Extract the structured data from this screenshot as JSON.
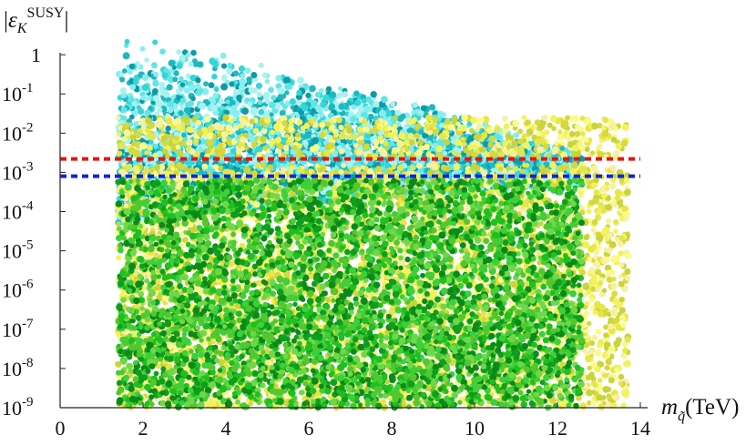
{
  "chart_data": {
    "type": "scatter",
    "title": "",
    "ylabel": "|εK^SUSY|",
    "ylabel_parts": {
      "left_bar": "|",
      "epsilon": "ε",
      "subscript": "K",
      "superscript": "SUSY",
      "right_bar": "|"
    },
    "xlabel": "m_q̃(TeV)",
    "xlabel_parts": {
      "m": "m",
      "subscript": "q̃",
      "unit": "(TeV)"
    },
    "xlim": [
      0,
      14
    ],
    "x_scale": "linear",
    "x_ticks": [
      {
        "value": 0,
        "label": "0"
      },
      {
        "value": 2,
        "label": "2"
      },
      {
        "value": 4,
        "label": "4"
      },
      {
        "value": 6,
        "label": "6"
      },
      {
        "value": 8,
        "label": "8"
      },
      {
        "value": 10,
        "label": "10"
      },
      {
        "value": 12,
        "label": "12"
      },
      {
        "value": 14,
        "label": "14"
      }
    ],
    "y_scale": "log",
    "ylim": [
      1e-09,
      5
    ],
    "y_ticks": [
      {
        "value": 1,
        "base": "1",
        "exp": ""
      },
      {
        "value": 0.1,
        "base": "10",
        "exp": "-1"
      },
      {
        "value": 0.01,
        "base": "10",
        "exp": "-2"
      },
      {
        "value": 0.001,
        "base": "10",
        "exp": "-3"
      },
      {
        "value": 0.0001,
        "base": "10",
        "exp": "-4"
      },
      {
        "value": 1e-05,
        "base": "10",
        "exp": "-5"
      },
      {
        "value": 1e-06,
        "base": "10",
        "exp": "-6"
      },
      {
        "value": 1e-07,
        "base": "10",
        "exp": "-7"
      },
      {
        "value": 1e-08,
        "base": "10",
        "exp": "-8"
      },
      {
        "value": 1e-09,
        "base": "10",
        "exp": "-9"
      }
    ],
    "grid": false,
    "reference_lines": [
      {
        "y": 0.0022,
        "color": "#ee1111",
        "style": "dashed"
      },
      {
        "y": 0.0008,
        "color": "#1122dd",
        "style": "dashed"
      }
    ],
    "series": [
      {
        "color_group": "cyan",
        "colors": [
          "#33d6d9",
          "#5ee6e6",
          "#86eeee",
          "#1fb8c0",
          "#0e9aa6",
          "#a8f2f0"
        ],
        "x_range": [
          1.4,
          12.6
        ],
        "envelope_top_log10": [
          [
            1.4,
            0.5
          ],
          [
            3.0,
            0.3
          ],
          [
            6.0,
            -0.5
          ],
          [
            9.0,
            -1.3
          ],
          [
            12.6,
            -2.5
          ]
        ],
        "envelope_bottom_log10": [
          [
            1.4,
            -4.3
          ],
          [
            4.0,
            -4.0
          ],
          [
            8.0,
            -3.6
          ],
          [
            12.6,
            -3.3
          ]
        ],
        "approx_points": 5000
      },
      {
        "color_group": "yellow",
        "colors": [
          "#f2f25a",
          "#e6e64a",
          "#fafa8a",
          "#d8d83c",
          "#c9d43a",
          "#f7f0a0"
        ],
        "x_range": [
          1.4,
          13.7
        ],
        "log10_range": [
          -9,
          -1.6
        ],
        "approx_points": 5000
      },
      {
        "color_group": "green",
        "colors": [
          "#1fbf1f",
          "#3cd03c",
          "#0e9e1e",
          "#6ed84a",
          "#0a8a18",
          "#54c72e"
        ],
        "x_range": [
          1.4,
          12.6
        ],
        "log10_range": [
          -9,
          -3.2
        ],
        "approx_points": 5000
      }
    ]
  }
}
